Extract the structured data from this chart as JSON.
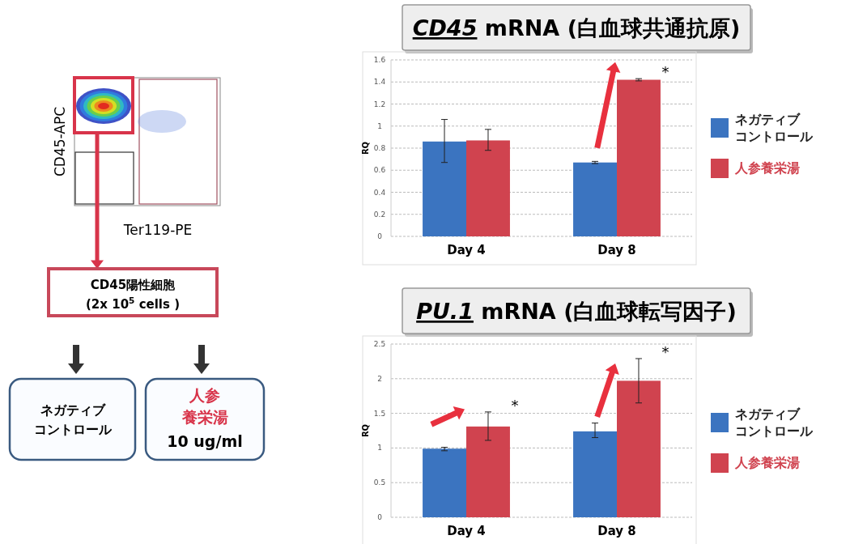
{
  "chart_data": [
    {
      "type": "other",
      "annotations": [
        "CD45-APC",
        "Ter119-PE",
        "CD45陽性細胞",
        "(2x 10$^{5}$ cells )",
        "ネガティブコントロール",
        "人参養栄湯",
        "10 ug/ml"
      ]
    },
    {
      "type": "bar",
      "title": "*CD45* mRNA (白血球共通抗原)",
      "ylabel": "RQ",
      "categories": [
        "Day 4",
        "Day 8"
      ],
      "series": [
        {
          "name": "ネガティブコントロール",
          "color": "#3b74c0",
          "values": [
            0.86,
            0.67
          ],
          "errors": [
            [
              0.67,
              1.06
            ],
            [
              0.66,
              0.68
            ]
          ]
        },
        {
          "name": "人参養栄湯",
          "color": "#d0434f",
          "values": [
            0.87,
            1.42
          ],
          "errors": [
            [
              0.78,
              0.97
            ],
            [
              1.41,
              1.43
            ]
          ]
        }
      ],
      "ylim": [
        0,
        1.6
      ],
      "yticks": [
        0,
        0.2,
        0.4,
        0.6,
        0.8,
        1,
        1.2,
        1.4,
        1.6
      ],
      "grid": "y",
      "legend": "right",
      "annotations": [
        "*"
      ]
    },
    {
      "type": "bar",
      "title": "*PU.1* mRNA (白血球転写因子)",
      "ylabel": "RQ",
      "categories": [
        "Day 4",
        "Day 8"
      ],
      "series": [
        {
          "name": "ネガティブコントロール",
          "color": "#3b74c0",
          "values": [
            0.99,
            1.24
          ],
          "errors": [
            [
              0.96,
              1.01
            ],
            [
              1.15,
              1.36
            ]
          ]
        },
        {
          "name": "人参養栄湯",
          "color": "#d0434f",
          "values": [
            1.31,
            1.97
          ],
          "errors": [
            [
              1.11,
              1.52
            ],
            [
              1.65,
              2.29
            ]
          ]
        }
      ],
      "ylim": [
        0,
        2.5
      ],
      "yticks": [
        0,
        0.5,
        1,
        1.5,
        2,
        2.5
      ],
      "grid": "y",
      "legend": "right",
      "annotations": [
        "*",
        "*"
      ]
    }
  ]
}
